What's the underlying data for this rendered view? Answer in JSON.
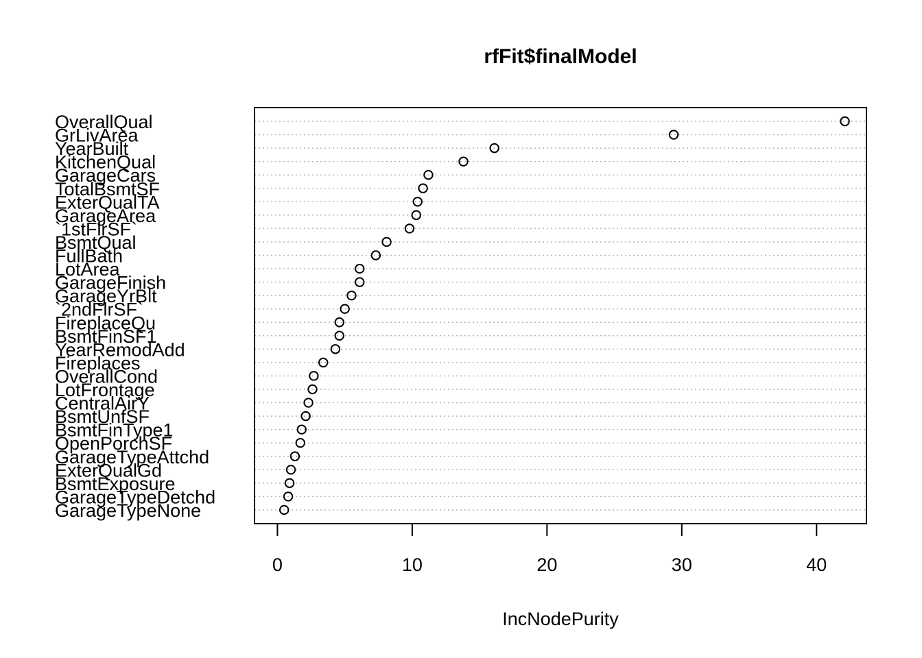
{
  "chart_data": {
    "type": "scatter",
    "title": "rfFit$finalModel",
    "xlabel": "IncNodePurity",
    "ylabel": "",
    "xlim": [
      -1.7,
      43.7
    ],
    "xticks": [
      0,
      10,
      20,
      30,
      40
    ],
    "grid": "dotted horizontal lines at each variable",
    "categories": [
      "OverallQual",
      "GrLivArea",
      "YearBuilt",
      "KitchenQual",
      "GarageCars",
      "TotalBsmtSF",
      "ExterQualTA",
      "GarageArea",
      "`1stFlrSF`",
      "BsmtQual",
      "FullBath",
      "LotArea",
      "GarageFinish",
      "GarageYrBlt",
      "`2ndFlrSF`",
      "FireplaceQu",
      "BsmtFinSF1",
      "YearRemodAdd",
      "Fireplaces",
      "OverallCond",
      "LotFrontage",
      "CentralAirY",
      "BsmtUnfSF",
      "BsmtFinType1",
      "OpenPorchSF",
      "GarageTypeAttchd",
      "ExterQualGd",
      "BsmtExposure",
      "GarageTypeDetchd",
      "GarageTypeNone"
    ],
    "values": [
      42.1,
      29.4,
      16.1,
      13.8,
      11.2,
      10.8,
      10.4,
      10.3,
      9.8,
      8.1,
      7.3,
      6.1,
      6.1,
      5.5,
      5.0,
      4.6,
      4.6,
      4.3,
      3.4,
      2.7,
      2.6,
      2.3,
      2.1,
      1.8,
      1.7,
      1.3,
      1.0,
      0.9,
      0.8,
      0.5
    ]
  }
}
